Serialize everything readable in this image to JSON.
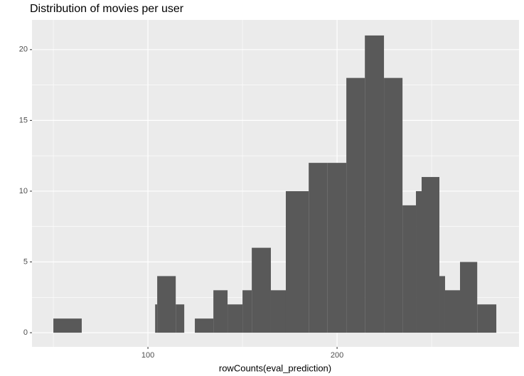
{
  "chart_data": {
    "type": "histogram",
    "title": "Distribution of movies per user",
    "x_label": "rowCounts(eval_prediction)",
    "bins": [
      50,
      65,
      103.8,
      104.9,
      114.7,
      119.2,
      124.8,
      134.6,
      142.1,
      150,
      154.9,
      165,
      172.9,
      185,
      195,
      204.9,
      214.7,
      224.8,
      234.6,
      241.7,
      244.7,
      254.1,
      257.1,
      265,
      274.1,
      284.2
    ],
    "values": [
      1,
      0,
      2,
      4,
      2,
      0,
      1,
      3,
      2,
      3,
      6,
      3,
      10,
      12,
      12,
      18,
      21,
      18,
      9,
      10,
      11,
      4,
      3,
      5,
      2
    ],
    "color": "#595959",
    "xlim": [
      38.7,
      296.2
    ],
    "xticks": [
      100,
      200
    ],
    "ylim": [
      -1.0,
      22.1
    ],
    "yticks": [
      0,
      5,
      10,
      15,
      20
    ],
    "grid": true
  }
}
